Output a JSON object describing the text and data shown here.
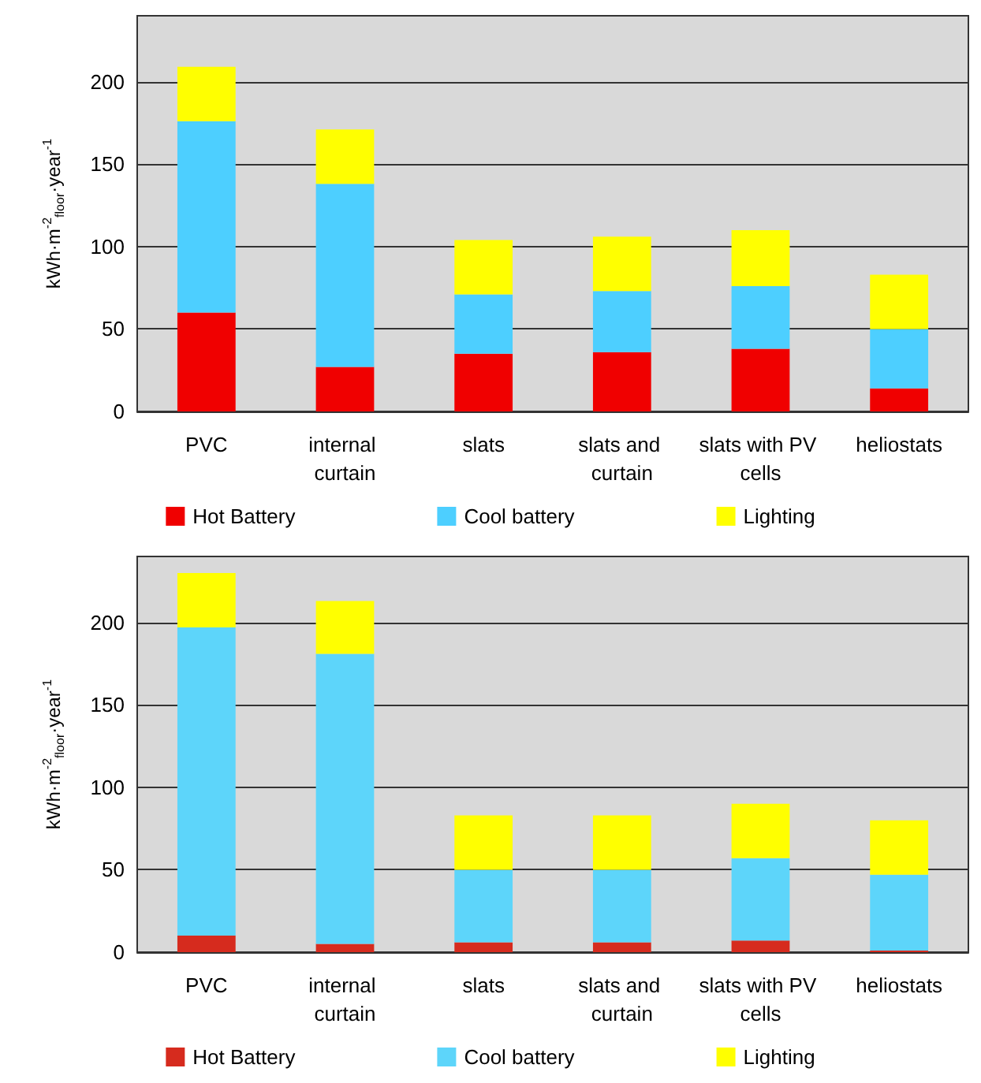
{
  "chart_data": [
    {
      "type": "bar",
      "stacked": true,
      "categories": [
        "PVC",
        "internal curtain",
        "slats",
        "slats and curtain",
        "slats with PV cells",
        "heliostats"
      ],
      "ylabel": "kWh·m$^{-2}$$_{floor}$·year$^{-1}$",
      "ylim": [
        0,
        240
      ],
      "yticks": [
        0,
        50,
        100,
        150,
        200
      ],
      "grid": "y",
      "legend": "bottom",
      "series": [
        {
          "name": "Hot Battery",
          "color": "#f00000",
          "values": [
            60,
            27,
            35,
            36,
            38,
            14
          ]
        },
        {
          "name": "Cool battery",
          "color": "#4dcfff",
          "values": [
            116,
            111,
            36,
            37,
            38,
            36
          ]
        },
        {
          "name": "Lighting",
          "color": "#ffff00",
          "values": [
            33,
            33,
            33,
            33,
            34,
            33
          ]
        }
      ]
    },
    {
      "type": "bar",
      "stacked": true,
      "categories": [
        "PVC",
        "internal curtain",
        "slats",
        "slats and curtain",
        "slats with PV cells",
        "heliostats"
      ],
      "ylabel": "kWh·m$^{-2}$$_{floor}$·year$^{-1}$",
      "ylim": [
        0,
        240
      ],
      "yticks": [
        0,
        50,
        100,
        150,
        200
      ],
      "grid": "y",
      "legend": "bottom",
      "series": [
        {
          "name": "Hot Battery",
          "color": "#d62b1e",
          "values": [
            10,
            5,
            6,
            6,
            7,
            1
          ]
        },
        {
          "name": "Cool battery",
          "color": "#5dd5fa",
          "values": [
            187,
            176,
            44,
            44,
            50,
            46
          ]
        },
        {
          "name": "Lighting",
          "color": "#ffff00",
          "values": [
            33,
            32,
            33,
            33,
            33,
            33
          ]
        }
      ]
    }
  ]
}
